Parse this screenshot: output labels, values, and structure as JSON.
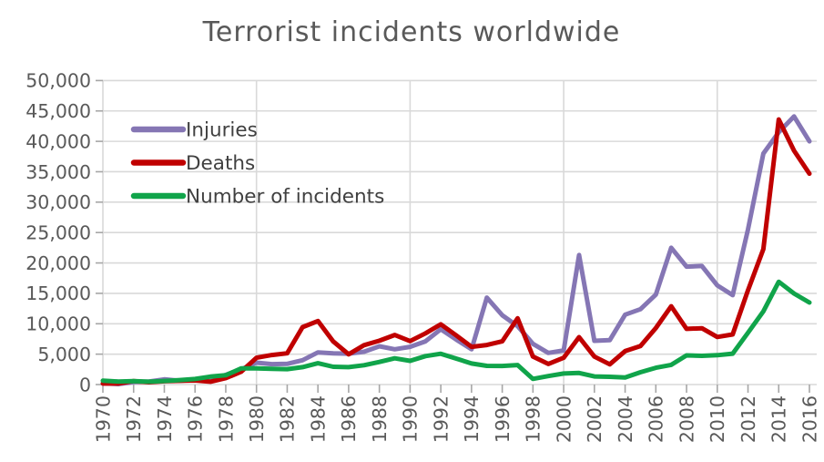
{
  "page": {
    "background": "#ffffff"
  },
  "chart_data": {
    "type": "line",
    "title": "Terrorist incidents worldwide",
    "xlabel": "",
    "ylabel": "",
    "ylim": [
      0,
      50000
    ],
    "ytick_step": 5000,
    "ytick_labels": [
      "0",
      "5,000",
      "10,000",
      "15,000",
      "20,000",
      "25,000",
      "30,000",
      "35,000",
      "40,000",
      "45,000",
      "50,000"
    ],
    "x": [
      1970,
      1971,
      1972,
      1973,
      1974,
      1975,
      1976,
      1977,
      1978,
      1979,
      1980,
      1981,
      1982,
      1983,
      1984,
      1985,
      1986,
      1987,
      1988,
      1989,
      1990,
      1991,
      1992,
      1993,
      1994,
      1995,
      1996,
      1997,
      1998,
      1999,
      2000,
      2001,
      2002,
      2003,
      2004,
      2005,
      2006,
      2007,
      2008,
      2009,
      2010,
      2011,
      2012,
      2013,
      2014,
      2015,
      2016
    ],
    "xtick_labels": [
      "1970",
      "1972",
      "1974",
      "1976",
      "1978",
      "1980",
      "1982",
      "1984",
      "1986",
      "1988",
      "1990",
      "1992",
      "1994",
      "1996",
      "1998",
      "2000",
      "2002",
      "2004",
      "2006",
      "2008",
      "2010",
      "2012",
      "2014",
      "2016"
    ],
    "grid": {
      "horizontal_every": 5000,
      "vertical_decades": [
        1970,
        1980,
        1990,
        2000,
        2010
      ]
    },
    "legend_position": "top-left-inside",
    "series": [
      {
        "name": "Injuries",
        "color": "#8576b4",
        "values": [
          210,
          80,
          410,
          500,
          860,
          620,
          760,
          520,
          1600,
          2500,
          3600,
          3350,
          3400,
          4000,
          5290,
          5130,
          5070,
          5400,
          6300,
          5800,
          6200,
          7100,
          9100,
          7400,
          5800,
          14300,
          11400,
          9600,
          6700,
          5200,
          5600,
          21300,
          7200,
          7300,
          11500,
          12400,
          14800,
          22500,
          19400,
          19500,
          16300,
          14700,
          25500,
          38000,
          41500,
          44100,
          40000
        ]
      },
      {
        "name": "Deaths",
        "color": "#c00000",
        "values": [
          170,
          170,
          570,
          370,
          540,
          620,
          670,
          460,
          1050,
          2100,
          4400,
          4850,
          5140,
          9440,
          10450,
          7090,
          4980,
          6480,
          7210,
          8150,
          7150,
          8430,
          9900,
          8100,
          6200,
          6500,
          7100,
          10900,
          4600,
          3390,
          4400,
          7800,
          4600,
          3320,
          5500,
          6330,
          9300,
          12880,
          9160,
          9270,
          7830,
          8250,
          15500,
          22270,
          43600,
          38460,
          34680
        ]
      },
      {
        "name": "Number of incidents",
        "color": "#10a44a",
        "values": [
          650,
          500,
          570,
          470,
          580,
          740,
          920,
          1300,
          1530,
          2660,
          2660,
          2590,
          2540,
          2870,
          3500,
          2920,
          2860,
          3180,
          3720,
          4320,
          3890,
          4680,
          5070,
          4270,
          3460,
          3080,
          3060,
          3200,
          930,
          1400,
          1810,
          1910,
          1330,
          1280,
          1170,
          2020,
          2760,
          3240,
          4800,
          4720,
          4830,
          5080,
          8520,
          12040,
          16900,
          14970,
          13490
        ]
      }
    ]
  },
  "legend": {
    "items": [
      {
        "label": "Injuries"
      },
      {
        "label": "Deaths"
      },
      {
        "label": "Number of incidents"
      }
    ]
  },
  "styles": {
    "title_color": "#595959",
    "tick_label_color": "#595959",
    "legend_text_color": "#404040",
    "gridline_color": "#d9d9d9",
    "tick_color": "#a6a6a6",
    "background_color": "#ffffff"
  }
}
